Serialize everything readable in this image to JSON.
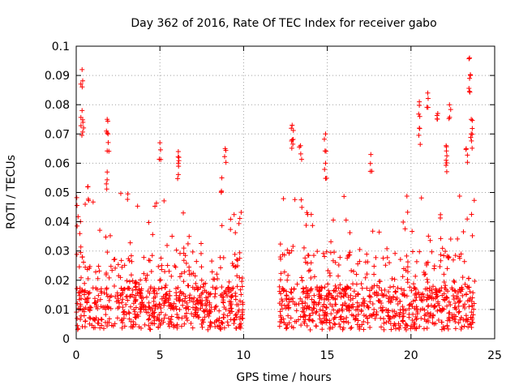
{
  "chart_data": {
    "type": "scatter",
    "title": "Day 362 of 2016, Rate Of TEC Index for receiver gabo",
    "xlabel": "GPS time / hours",
    "ylabel": "ROTI / TECUs",
    "xlim": [
      0,
      25
    ],
    "ylim": [
      0,
      0.1
    ],
    "x_ticks": [
      0,
      5,
      10,
      15,
      20,
      25
    ],
    "x_tick_labels": [
      "0",
      "5",
      "10",
      "15",
      "20",
      "25"
    ],
    "y_ticks": [
      0,
      0.01,
      0.02,
      0.03,
      0.04,
      0.05,
      0.06,
      0.07,
      0.08,
      0.09,
      0.1
    ],
    "y_tick_labels": [
      "0",
      "0.01",
      "0.02",
      "0.03",
      "0.04",
      "0.05",
      "0.06",
      "0.07",
      "0.08",
      "0.09",
      "0.1"
    ],
    "grid": true,
    "marker": "+",
    "color": "#ff0000",
    "series": [
      {
        "name": "ROTI",
        "segments": [
          {
            "x_start": 0.0,
            "x_end": 9.95,
            "baseline_max": 0.015
          },
          {
            "x_start": 12.1,
            "x_end": 23.8,
            "baseline_max": 0.015
          }
        ],
        "peaks": [
          {
            "x": 0.35,
            "y": 0.092
          },
          {
            "x": 0.35,
            "y": 0.078
          },
          {
            "x": 0.4,
            "y": 0.074
          },
          {
            "x": 0.7,
            "y": 0.052
          },
          {
            "x": 1.85,
            "y": 0.075
          },
          {
            "x": 1.9,
            "y": 0.07
          },
          {
            "x": 1.85,
            "y": 0.057
          },
          {
            "x": 5.0,
            "y": 0.067
          },
          {
            "x": 6.1,
            "y": 0.064
          },
          {
            "x": 6.1,
            "y": 0.06
          },
          {
            "x": 8.9,
            "y": 0.065
          },
          {
            "x": 8.7,
            "y": 0.055
          },
          {
            "x": 12.9,
            "y": 0.073
          },
          {
            "x": 12.9,
            "y": 0.068
          },
          {
            "x": 13.4,
            "y": 0.066
          },
          {
            "x": 14.9,
            "y": 0.07
          },
          {
            "x": 14.9,
            "y": 0.06
          },
          {
            "x": 17.6,
            "y": 0.063
          },
          {
            "x": 20.5,
            "y": 0.081
          },
          {
            "x": 20.5,
            "y": 0.072
          },
          {
            "x": 21.0,
            "y": 0.084
          },
          {
            "x": 21.6,
            "y": 0.077
          },
          {
            "x": 22.3,
            "y": 0.08
          },
          {
            "x": 22.1,
            "y": 0.066
          },
          {
            "x": 22.1,
            "y": 0.061
          },
          {
            "x": 23.5,
            "y": 0.096
          },
          {
            "x": 23.5,
            "y": 0.089
          },
          {
            "x": 23.6,
            "y": 0.075
          },
          {
            "x": 23.6,
            "y": 0.07
          },
          {
            "x": 23.3,
            "y": 0.065
          }
        ]
      }
    ]
  }
}
